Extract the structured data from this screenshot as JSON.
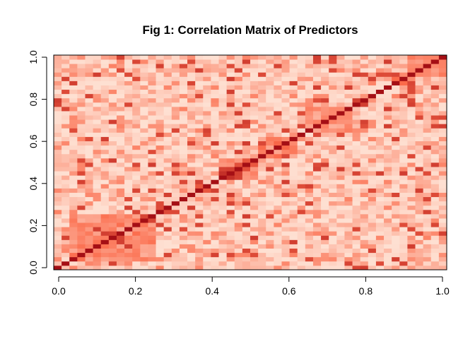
{
  "chart_data": {
    "type": "heatmap",
    "title": "Fig 1: Correlation Matrix of Predictors",
    "xlabel": "",
    "ylabel": "",
    "xlim": [
      0.0,
      1.0
    ],
    "ylim": [
      0.0,
      1.0
    ],
    "x_ticks": [
      "0.0",
      "0.2",
      "0.4",
      "0.6",
      "0.8",
      "1.0"
    ],
    "y_ticks": [
      "0.0",
      "0.2",
      "0.4",
      "0.6",
      "0.8",
      "1.0"
    ],
    "n_variables": 50,
    "grid": false,
    "legend": "none",
    "color_scale": {
      "low": "#fee0d2",
      "mid": "#fb6a4a",
      "high": "#a50f15"
    },
    "blocks": [
      {
        "range": [
          0.05,
          0.25
        ],
        "strength": 0.55
      },
      {
        "range": [
          0.36,
          0.4
        ],
        "strength": 0.95
      },
      {
        "range": [
          0.42,
          0.52
        ],
        "strength": 0.75
      },
      {
        "range": [
          0.53,
          0.62
        ],
        "strength": 0.6
      },
      {
        "range": [
          0.64,
          0.76
        ],
        "strength": 0.5
      },
      {
        "range": [
          0.86,
          0.91
        ],
        "strength": 0.8
      },
      {
        "range": [
          0.91,
          1.0
        ],
        "strength": 0.55
      }
    ]
  }
}
